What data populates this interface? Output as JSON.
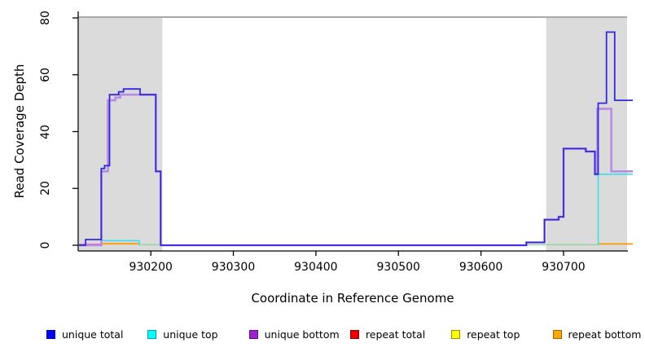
{
  "figure": {
    "background": "#ffffff",
    "axis_color": "#000000",
    "shaded_region_color": "#dbdbdb",
    "top_rule_color": "#a8a8a8"
  },
  "chart_data": {
    "type": "line",
    "subtype": "step-coverage",
    "title": "",
    "xlabel": "Coordinate in Reference Genome",
    "ylabel": "Read Coverage Depth",
    "xlim": [
      930113,
      930777
    ],
    "ylim": [
      0,
      80
    ],
    "x_ticks": [
      930200,
      930300,
      930400,
      930500,
      930600,
      930700
    ],
    "y_ticks": [
      0,
      20,
      40,
      60,
      80
    ],
    "grid": false,
    "legend_position": "bottom",
    "shaded_regions": [
      {
        "from": 930113,
        "to": 930214,
        "color": "#dbdbdb"
      },
      {
        "from": 930679,
        "to": 930777,
        "color": "#dbdbdb"
      }
    ],
    "top_rule_y": 80,
    "series": [
      {
        "name": "repeat total",
        "plot_color": "#d962b0",
        "width": 1.6,
        "segments": [
          [
            [
              930113,
              0.35
            ],
            [
              930140,
              0.35
            ]
          ]
        ]
      },
      {
        "name": "repeat top",
        "plot_color": "#97d89b",
        "width": 1.6,
        "segments": [
          [
            [
              930186,
              0.2
            ],
            [
              930214,
              0.2
            ]
          ],
          [
            [
              930655,
              0.2
            ],
            [
              930742,
              0.2
            ]
          ]
        ]
      },
      {
        "name": "repeat bottom",
        "plot_color": "#ff9e1b",
        "width": 2,
        "segments": [
          [
            [
              930140,
              0.55
            ],
            [
              930186,
              0.55
            ]
          ],
          [
            [
              930742,
              0.45
            ],
            [
              930784,
              0.45
            ]
          ]
        ]
      },
      {
        "name": "unique top",
        "plot_color": "#3bdfe8",
        "width": 1.6,
        "segments": [
          [
            [
              930140,
              1.6
            ],
            [
              930186,
              0
            ]
          ],
          [
            [
              930742,
              0
            ],
            [
              930742,
              25
            ],
            [
              930784,
              25
            ]
          ]
        ]
      },
      {
        "name": "unique bottom",
        "plot_color": "#b98be6",
        "width": 2.6,
        "segments": [
          [
            [
              930113,
              0
            ],
            [
              930140,
              26
            ],
            [
              930148,
              51
            ],
            [
              930157,
              52
            ],
            [
              930163,
              53
            ],
            [
              930206,
              26
            ],
            [
              930212,
              0
            ],
            [
              930655,
              1
            ],
            [
              930677,
              9
            ],
            [
              930694,
              10
            ],
            [
              930700,
              34
            ],
            [
              930727,
              33
            ],
            [
              930738,
              25
            ],
            [
              930741,
              48
            ],
            [
              930758,
              26
            ],
            [
              930784,
              26
            ]
          ]
        ]
      },
      {
        "name": "unique total",
        "plot_color": "#3229df",
        "width": 1.8,
        "segments": [
          [
            [
              930113,
              0
            ],
            [
              930121,
              2
            ],
            [
              930140,
              27
            ],
            [
              930144,
              28
            ],
            [
              930150,
              53
            ],
            [
              930161,
              54
            ],
            [
              930167,
              55
            ],
            [
              930187,
              53
            ],
            [
              930206,
              26
            ],
            [
              930212,
              0
            ],
            [
              930655,
              1
            ],
            [
              930677,
              9
            ],
            [
              930694,
              10
            ],
            [
              930700,
              34
            ],
            [
              930727,
              33
            ],
            [
              930738,
              25
            ],
            [
              930742,
              50
            ],
            [
              930752,
              75
            ],
            [
              930762,
              51
            ],
            [
              930784,
              51
            ]
          ]
        ]
      }
    ],
    "legend": [
      {
        "label": "unique total",
        "color": "#0000ff",
        "border": "#0000a8"
      },
      {
        "label": "unique top",
        "color": "#00ffff",
        "border": "#00a0b0"
      },
      {
        "label": "unique bottom",
        "color": "#a020d0",
        "border": "#5e1080"
      },
      {
        "label": "repeat total",
        "color": "#ee0000",
        "border": "#8f0000"
      },
      {
        "label": "repeat top",
        "color": "#ffff00",
        "border": "#909000"
      },
      {
        "label": "repeat bottom",
        "color": "#ffa500",
        "border": "#a06500"
      }
    ]
  }
}
